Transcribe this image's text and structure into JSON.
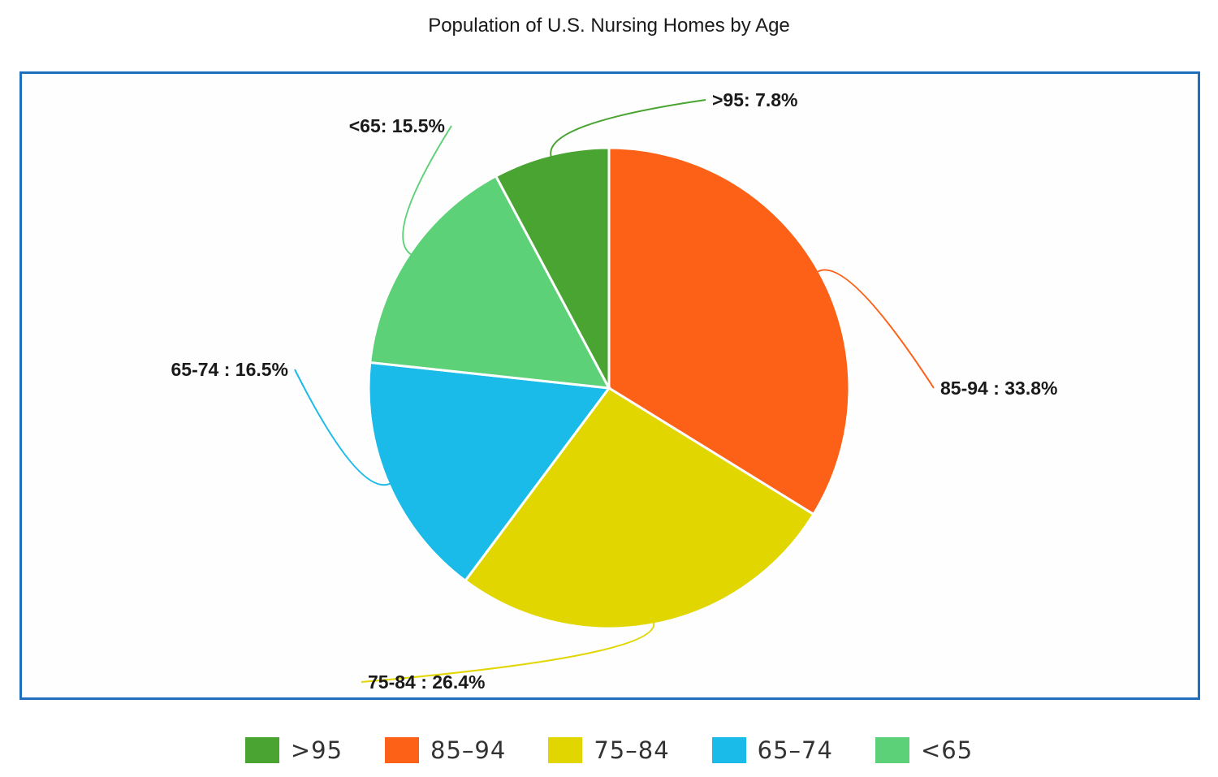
{
  "chart_data": {
    "type": "pie",
    "title": "Population of U.S. Nursing Homes by Age",
    "unit": "%",
    "slices": [
      {
        "label": "85-94",
        "value": 33.8,
        "display": "85-94 : 33.8%",
        "legend": "85–94",
        "color": "#fd6117"
      },
      {
        "label": "75-84",
        "value": 26.4,
        "display": "75-84 : 26.4%",
        "legend": "75–84",
        "color": "#e1d600"
      },
      {
        "label": "65-74",
        "value": 16.5,
        "display": "65-74 : 16.5%",
        "legend": "65–74",
        "color": "#1bbbe9"
      },
      {
        "label": "<65",
        "value": 15.5,
        "display": "<65: 15.5%",
        "legend": "<65",
        "color": "#5dd177"
      },
      {
        "label": ">95",
        "value": 7.8,
        "display": ">95: 7.8%",
        "legend": ">95",
        "color": "#4aa432"
      }
    ],
    "legend_order": [
      ">95",
      "85-94",
      "75-84",
      "65-74",
      "<65"
    ],
    "legend_position": "bottom"
  }
}
